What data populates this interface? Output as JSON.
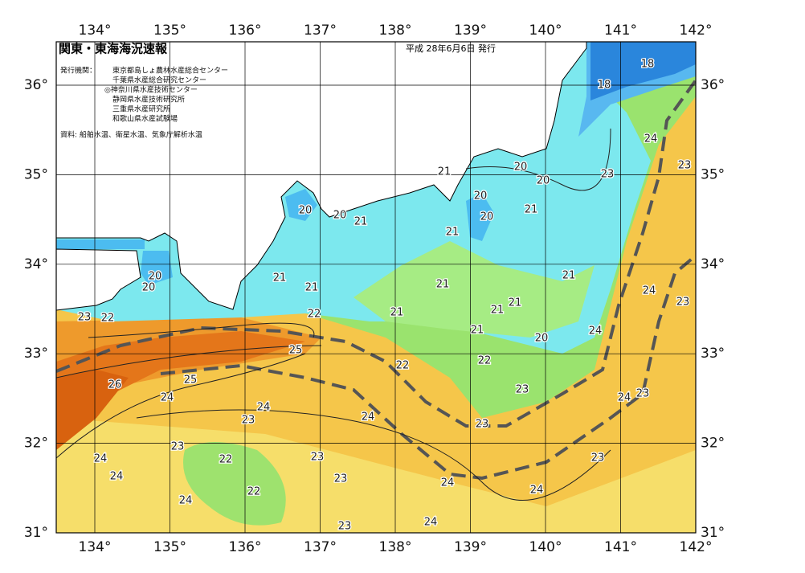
{
  "header": {
    "title": "関東・東海海況速報",
    "date": "平成 28年6月6日 発行",
    "issuer_label": "発行機関：",
    "issuers": [
      "東京都島しょ農林水産総合センター",
      "千葉県水産総合研究センター",
      "◎神奈川県水産技術センター",
      "静岡県水産技術研究所",
      "三重県水産研究所",
      "和歌山県水産試験場"
    ],
    "source": "資料: 船舶水温、衛星水温、気象庁解析水温"
  },
  "map": {
    "lon_labels": [
      "134°",
      "135°",
      "136°",
      "137°",
      "138°",
      "139°",
      "140°",
      "141°",
      "142°"
    ],
    "lat_labels": [
      "36°",
      "35°",
      "34°",
      "33°",
      "32°",
      "31°"
    ],
    "contour_labels": [
      "18",
      "18",
      "20",
      "20",
      "21",
      "20",
      "20",
      "20",
      "21",
      "20",
      "21",
      "21",
      "23",
      "24",
      "23",
      "20",
      "20",
      "21",
      "21",
      "21",
      "21",
      "22",
      "21",
      "21",
      "21",
      "24",
      "23",
      "23",
      "22",
      "21",
      "20",
      "24",
      "25",
      "22",
      "22",
      "26",
      "25",
      "24",
      "23",
      "24",
      "23",
      "24",
      "23",
      "24",
      "23",
      "23",
      "24",
      "22",
      "23",
      "23",
      "24",
      "23",
      "24",
      "22",
      "24",
      "24",
      "24",
      "23"
    ]
  }
}
